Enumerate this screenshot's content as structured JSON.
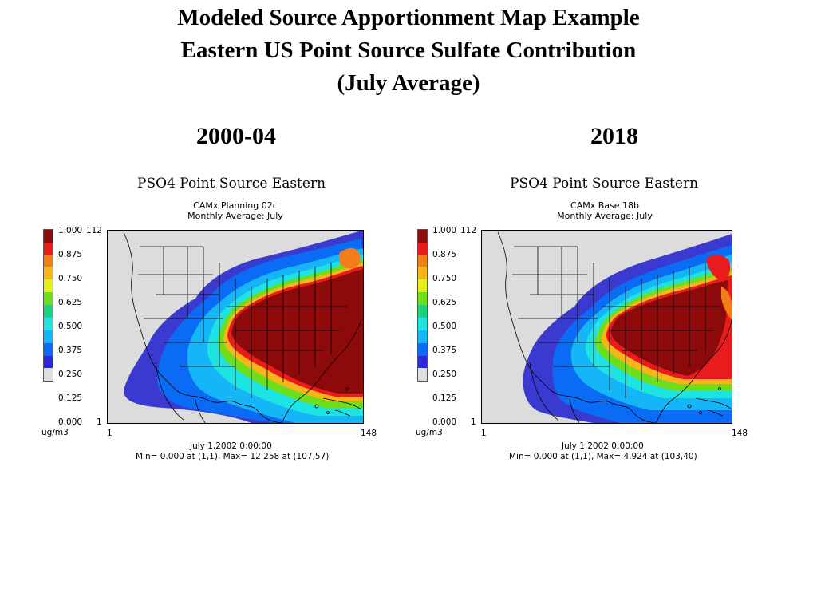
{
  "title_lines": [
    "Modeled Source Apportionment Map Example",
    "Eastern US Point Source Sulfate Contribution",
    "(July Average)"
  ],
  "legend_colors": [
    "#dedede",
    "#2b2bd6",
    "#0a6cf5",
    "#15b6f7",
    "#1de3e3",
    "#1fd07c",
    "#6cde1b",
    "#e8ee1a",
    "#f7b51a",
    "#f37d18",
    "#e81c1c",
    "#8c0a0a"
  ],
  "panels": [
    {
      "year": "2000-04",
      "plot_title": "PSO4 Point Source Eastern",
      "subtitle_1": "CAMx Planning 02c",
      "subtitle_2": "Monthly Average: July",
      "legend_labels": [
        "1.000",
        "0.875",
        "0.750",
        "0.625",
        "0.500",
        "0.375",
        "0.250",
        "0.125",
        "0.000"
      ],
      "units": "ug/m3",
      "y_top": "112",
      "y_bottom": "1",
      "x_left": "1",
      "x_right": "148",
      "timestamp": "July 1,2002 0:00:00",
      "minmax": "Min=  0.000 at (1,1), Max= 12.258 at (107,57)"
    },
    {
      "year": "2018",
      "plot_title": "PSO4 Point Source Eastern",
      "subtitle_1": "CAMx Base 18b",
      "subtitle_2": "Monthly Average: July",
      "legend_labels": [
        "1.000",
        "0.875",
        "0.750",
        "0.625",
        "0.500",
        "0.375",
        "0.250",
        "0.125",
        "0.000"
      ],
      "units": "ug/m3",
      "y_top": "112",
      "y_bottom": "1",
      "x_left": "1",
      "x_right": "148",
      "timestamp": "July 1,2002 0:00:00",
      "minmax": "Min=  0.000 at (1,1), Max=  4.924 at (103,40)"
    }
  ]
}
